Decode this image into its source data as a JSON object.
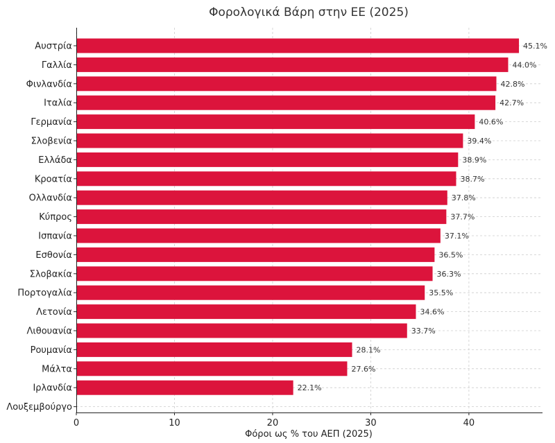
{
  "chart_data": {
    "type": "bar",
    "orientation": "horizontal",
    "title": "Φορολογικά Βάρη στην ΕΕ (2025)",
    "xlabel": "Φόροι ως % του ΑΕΠ (2025)",
    "ylabel": "",
    "xlim": [
      0,
      47.5
    ],
    "xticks": [
      0,
      10,
      20,
      30,
      40
    ],
    "grid": true,
    "bar_color": "#dc143c",
    "categories": [
      "Αυστρία",
      "Γαλλία",
      "Φινλανδία",
      "Ιταλία",
      "Γερμανία",
      "Σλοβενία",
      "Ελλάδα",
      "Κροατία",
      "Ολλανδία",
      "Κύπρος",
      "Ισπανία",
      "Εσθονία",
      "Σλοβακία",
      "Πορτογαλία",
      "Λετονία",
      "Λιθουανία",
      "Ρουμανία",
      "Μάλτα",
      "Ιρλανδία",
      "Λουξεμβούργο"
    ],
    "values": [
      45.1,
      44.0,
      42.8,
      42.7,
      40.6,
      39.4,
      38.9,
      38.7,
      37.8,
      37.7,
      37.1,
      36.5,
      36.3,
      35.5,
      34.6,
      33.7,
      28.1,
      27.6,
      22.1,
      null
    ],
    "labels": [
      "45.1%",
      "44.0%",
      "42.8%",
      "42.7%",
      "40.6%",
      "39.4%",
      "38.9%",
      "38.7%",
      "37.8%",
      "37.7%",
      "37.1%",
      "36.5%",
      "36.3%",
      "35.5%",
      "34.6%",
      "33.7%",
      "28.1%",
      "27.6%",
      "22.1%",
      ""
    ]
  }
}
